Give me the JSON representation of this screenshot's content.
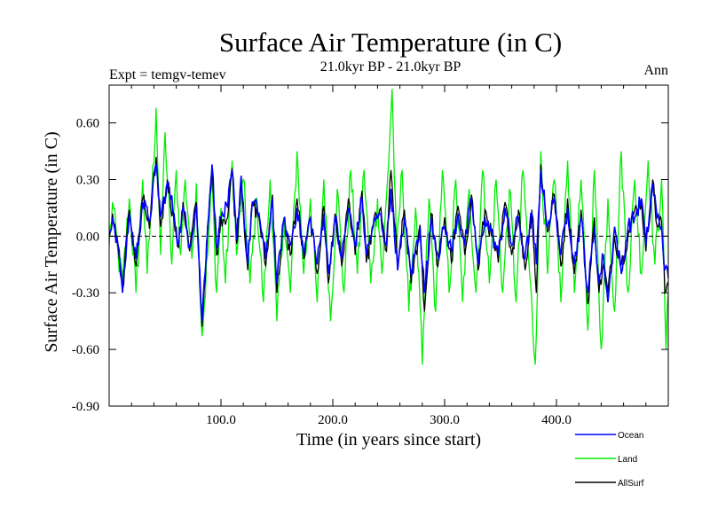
{
  "chart_data": {
    "type": "line",
    "title": "Surface Air Temperature (in C)",
    "subtitle": "21.0kyr BP - 21.0kyr BP",
    "left_label": "Expt = temgv-temev",
    "right_label": "Ann",
    "xlabel": "Time (in years since start)",
    "ylabel": "Surface Air Temperature (in C)",
    "xlim": [
      0,
      500
    ],
    "ylim": [
      -0.9,
      0.8
    ],
    "xticks": [
      100,
      200,
      300,
      400
    ],
    "xtick_labels": [
      "100.0",
      "200.0",
      "300.0",
      "400.0"
    ],
    "yticks": [
      -0.9,
      -0.6,
      -0.3,
      0.0,
      0.3,
      0.6
    ],
    "ytick_labels": [
      "-0.90",
      "-0.60",
      "-0.30",
      "0.00",
      "0.30",
      "0.60"
    ],
    "zero_line": true,
    "legend_position": "bottom-right",
    "series": [
      {
        "name": "Ocean",
        "color": "#0000ff",
        "keypoints": [
          [
            0,
            0.02
          ],
          [
            3,
            0.1
          ],
          [
            8,
            -0.05
          ],
          [
            12,
            -0.3
          ],
          [
            18,
            0.12
          ],
          [
            24,
            -0.12
          ],
          [
            30,
            0.18
          ],
          [
            36,
            0.08
          ],
          [
            42,
            0.38
          ],
          [
            46,
            0.1
          ],
          [
            52,
            0.28
          ],
          [
            58,
            0.12
          ],
          [
            62,
            -0.04
          ],
          [
            66,
            0.15
          ],
          [
            72,
            -0.05
          ],
          [
            78,
            0.16
          ],
          [
            83,
            -0.45
          ],
          [
            88,
            0.05
          ],
          [
            92,
            0.38
          ],
          [
            96,
            -0.05
          ],
          [
            100,
            0.1
          ],
          [
            106,
            0.15
          ],
          [
            110,
            0.35
          ],
          [
            114,
            -0.02
          ],
          [
            118,
            0.32
          ],
          [
            124,
            -0.15
          ],
          [
            128,
            0.18
          ],
          [
            134,
            0.12
          ],
          [
            140,
            -0.12
          ],
          [
            146,
            0.2
          ],
          [
            150,
            -0.25
          ],
          [
            156,
            0.08
          ],
          [
            162,
            -0.05
          ],
          [
            168,
            0.15
          ],
          [
            174,
            -0.1
          ],
          [
            180,
            0.1
          ],
          [
            186,
            -0.15
          ],
          [
            192,
            0.12
          ],
          [
            196,
            -0.2
          ],
          [
            202,
            0.1
          ],
          [
            208,
            -0.12
          ],
          [
            214,
            0.15
          ],
          [
            220,
            -0.05
          ],
          [
            226,
            0.2
          ],
          [
            230,
            -0.1
          ],
          [
            236,
            0.05
          ],
          [
            242,
            0.12
          ],
          [
            248,
            -0.05
          ],
          [
            252,
            0.25
          ],
          [
            258,
            -0.18
          ],
          [
            264,
            0.1
          ],
          [
            270,
            -0.2
          ],
          [
            278,
            0.05
          ],
          [
            282,
            -0.3
          ],
          [
            288,
            0.1
          ],
          [
            294,
            -0.1
          ],
          [
            300,
            0.05
          ],
          [
            306,
            -0.08
          ],
          [
            312,
            0.12
          ],
          [
            318,
            -0.05
          ],
          [
            324,
            0.2
          ],
          [
            330,
            -0.15
          ],
          [
            336,
            0.1
          ],
          [
            342,
            0.02
          ],
          [
            348,
            -0.1
          ],
          [
            354,
            0.15
          ],
          [
            360,
            -0.05
          ],
          [
            366,
            0.1
          ],
          [
            372,
            -0.12
          ],
          [
            378,
            0.12
          ],
          [
            382,
            -0.15
          ],
          [
            386,
            0.35
          ],
          [
            392,
            0.05
          ],
          [
            398,
            0.2
          ],
          [
            404,
            -0.1
          ],
          [
            410,
            0.15
          ],
          [
            416,
            -0.15
          ],
          [
            422,
            0.1
          ],
          [
            428,
            -0.3
          ],
          [
            434,
            0.05
          ],
          [
            438,
            -0.25
          ],
          [
            442,
            -0.1
          ],
          [
            446,
            -0.35
          ],
          [
            452,
            0.05
          ],
          [
            458,
            -0.2
          ],
          [
            464,
            0.05
          ],
          [
            470,
            0.1
          ],
          [
            476,
            0.2
          ],
          [
            480,
            -0.05
          ],
          [
            486,
            0.28
          ],
          [
            490,
            0.1
          ],
          [
            494,
            0.05
          ],
          [
            497,
            -0.18
          ],
          [
            500,
            -0.22
          ]
        ]
      },
      {
        "name": "Land",
        "color": "#00ee00",
        "keypoints": [
          [
            0,
            -0.05
          ],
          [
            3,
            0.18
          ],
          [
            8,
            -0.1
          ],
          [
            12,
            -0.25
          ],
          [
            18,
            0.2
          ],
          [
            24,
            -0.3
          ],
          [
            30,
            0.3
          ],
          [
            34,
            -0.2
          ],
          [
            38,
            0.2
          ],
          [
            42,
            0.68
          ],
          [
            46,
            -0.1
          ],
          [
            50,
            0.55
          ],
          [
            56,
            -0.15
          ],
          [
            60,
            0.35
          ],
          [
            64,
            -0.1
          ],
          [
            68,
            0.3
          ],
          [
            74,
            -0.12
          ],
          [
            78,
            0.28
          ],
          [
            83,
            -0.53
          ],
          [
            88,
            -0.1
          ],
          [
            92,
            0.3
          ],
          [
            96,
            -0.3
          ],
          [
            100,
            0.15
          ],
          [
            104,
            -0.25
          ],
          [
            110,
            0.4
          ],
          [
            114,
            -0.1
          ],
          [
            120,
            0.3
          ],
          [
            126,
            -0.25
          ],
          [
            132,
            0.2
          ],
          [
            138,
            -0.35
          ],
          [
            144,
            0.3
          ],
          [
            150,
            -0.45
          ],
          [
            156,
            0.1
          ],
          [
            162,
            -0.3
          ],
          [
            168,
            0.45
          ],
          [
            174,
            -0.2
          ],
          [
            180,
            0.2
          ],
          [
            186,
            -0.35
          ],
          [
            192,
            0.3
          ],
          [
            198,
            -0.45
          ],
          [
            204,
            0.25
          ],
          [
            210,
            -0.3
          ],
          [
            216,
            0.35
          ],
          [
            222,
            -0.2
          ],
          [
            228,
            0.35
          ],
          [
            234,
            -0.25
          ],
          [
            240,
            0.2
          ],
          [
            244,
            -0.2
          ],
          [
            249,
            0.3
          ],
          [
            253,
            0.78
          ],
          [
            257,
            -0.1
          ],
          [
            262,
            0.35
          ],
          [
            268,
            -0.4
          ],
          [
            274,
            0.15
          ],
          [
            280,
            -0.68
          ],
          [
            286,
            0.2
          ],
          [
            292,
            -0.4
          ],
          [
            298,
            0.35
          ],
          [
            304,
            -0.3
          ],
          [
            310,
            0.3
          ],
          [
            316,
            -0.35
          ],
          [
            322,
            0.25
          ],
          [
            328,
            -0.3
          ],
          [
            334,
            0.35
          ],
          [
            340,
            -0.25
          ],
          [
            346,
            0.3
          ],
          [
            352,
            -0.3
          ],
          [
            358,
            0.25
          ],
          [
            364,
            -0.35
          ],
          [
            370,
            0.35
          ],
          [
            376,
            -0.2
          ],
          [
            381,
            -0.68
          ],
          [
            386,
            0.45
          ],
          [
            392,
            -0.2
          ],
          [
            398,
            0.3
          ],
          [
            404,
            -0.35
          ],
          [
            410,
            0.4
          ],
          [
            416,
            -0.3
          ],
          [
            422,
            0.3
          ],
          [
            428,
            -0.5
          ],
          [
            434,
            0.35
          ],
          [
            440,
            -0.6
          ],
          [
            446,
            0.2
          ],
          [
            452,
            -0.4
          ],
          [
            458,
            0.45
          ],
          [
            464,
            -0.3
          ],
          [
            470,
            0.3
          ],
          [
            476,
            -0.2
          ],
          [
            482,
            0.4
          ],
          [
            488,
            -0.15
          ],
          [
            494,
            0.3
          ],
          [
            498,
            -0.6
          ],
          [
            500,
            -0.3
          ]
        ]
      },
      {
        "name": "AllSurf",
        "color": "#000000",
        "keypoints": [
          [
            0,
            0.0
          ],
          [
            3,
            0.12
          ],
          [
            8,
            -0.06
          ],
          [
            12,
            -0.28
          ],
          [
            18,
            0.14
          ],
          [
            24,
            -0.16
          ],
          [
            30,
            0.2
          ],
          [
            36,
            0.04
          ],
          [
            42,
            0.42
          ],
          [
            46,
            0.05
          ],
          [
            52,
            0.3
          ],
          [
            58,
            0.08
          ],
          [
            62,
            -0.06
          ],
          [
            66,
            0.18
          ],
          [
            72,
            -0.08
          ],
          [
            78,
            0.18
          ],
          [
            83,
            -0.48
          ],
          [
            88,
            0.02
          ],
          [
            92,
            0.36
          ],
          [
            96,
            -0.1
          ],
          [
            100,
            0.1
          ],
          [
            106,
            0.1
          ],
          [
            110,
            0.36
          ],
          [
            114,
            -0.04
          ],
          [
            118,
            0.3
          ],
          [
            124,
            -0.18
          ],
          [
            128,
            0.18
          ],
          [
            134,
            0.1
          ],
          [
            140,
            -0.16
          ],
          [
            146,
            0.22
          ],
          [
            150,
            -0.3
          ],
          [
            156,
            0.08
          ],
          [
            162,
            -0.1
          ],
          [
            168,
            0.2
          ],
          [
            174,
            -0.12
          ],
          [
            180,
            0.1
          ],
          [
            186,
            -0.2
          ],
          [
            192,
            0.16
          ],
          [
            196,
            -0.25
          ],
          [
            202,
            0.12
          ],
          [
            208,
            -0.16
          ],
          [
            214,
            0.2
          ],
          [
            220,
            -0.1
          ],
          [
            226,
            0.24
          ],
          [
            230,
            -0.14
          ],
          [
            236,
            0.06
          ],
          [
            242,
            0.14
          ],
          [
            248,
            -0.08
          ],
          [
            252,
            0.35
          ],
          [
            258,
            -0.18
          ],
          [
            264,
            0.14
          ],
          [
            270,
            -0.25
          ],
          [
            278,
            0.06
          ],
          [
            282,
            -0.4
          ],
          [
            288,
            0.12
          ],
          [
            294,
            -0.16
          ],
          [
            300,
            0.1
          ],
          [
            306,
            -0.14
          ],
          [
            312,
            0.16
          ],
          [
            318,
            -0.1
          ],
          [
            324,
            0.22
          ],
          [
            330,
            -0.18
          ],
          [
            336,
            0.14
          ],
          [
            342,
            0.0
          ],
          [
            348,
            -0.14
          ],
          [
            354,
            0.18
          ],
          [
            360,
            -0.1
          ],
          [
            366,
            0.14
          ],
          [
            372,
            -0.18
          ],
          [
            378,
            0.14
          ],
          [
            382,
            -0.3
          ],
          [
            386,
            0.38
          ],
          [
            392,
            0.02
          ],
          [
            398,
            0.22
          ],
          [
            404,
            -0.16
          ],
          [
            410,
            0.2
          ],
          [
            416,
            -0.2
          ],
          [
            422,
            0.14
          ],
          [
            428,
            -0.36
          ],
          [
            434,
            0.1
          ],
          [
            438,
            -0.3
          ],
          [
            442,
            -0.15
          ],
          [
            446,
            -0.3
          ],
          [
            452,
            0.0
          ],
          [
            458,
            -0.15
          ],
          [
            464,
            0.0
          ],
          [
            470,
            0.14
          ],
          [
            476,
            0.18
          ],
          [
            480,
            -0.08
          ],
          [
            486,
            0.3
          ],
          [
            490,
            0.05
          ],
          [
            494,
            0.08
          ],
          [
            497,
            -0.3
          ],
          [
            500,
            -0.24
          ]
        ]
      }
    ]
  }
}
